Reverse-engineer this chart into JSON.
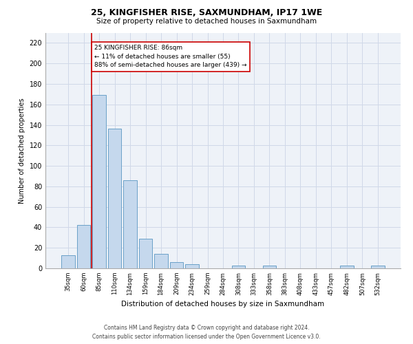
{
  "title1": "25, KINGFISHER RISE, SAXMUNDHAM, IP17 1WE",
  "title2": "Size of property relative to detached houses in Saxmundham",
  "xlabel": "Distribution of detached houses by size in Saxmundham",
  "ylabel": "Number of detached properties",
  "footer1": "Contains HM Land Registry data © Crown copyright and database right 2024.",
  "footer2": "Contains public sector information licensed under the Open Government Licence v3.0.",
  "annotation_line1": "25 KINGFISHER RISE: 86sqm",
  "annotation_line2": "← 11% of detached houses are smaller (55)",
  "annotation_line3": "88% of semi-detached houses are larger (439) →",
  "bar_labels": [
    "35sqm",
    "60sqm",
    "85sqm",
    "110sqm",
    "134sqm",
    "159sqm",
    "184sqm",
    "209sqm",
    "234sqm",
    "259sqm",
    "284sqm",
    "308sqm",
    "333sqm",
    "358sqm",
    "383sqm",
    "408sqm",
    "433sqm",
    "457sqm",
    "482sqm",
    "507sqm",
    "532sqm"
  ],
  "bar_values": [
    13,
    42,
    169,
    136,
    86,
    29,
    14,
    6,
    4,
    0,
    0,
    3,
    0,
    3,
    0,
    0,
    0,
    0,
    3,
    0,
    3
  ],
  "bar_color": "#c5d8ed",
  "bar_edge_color": "#6aa0c8",
  "vline_color": "#cc0000",
  "annotation_box_color": "#cc0000",
  "ylim": [
    0,
    230
  ],
  "yticks": [
    0,
    20,
    40,
    60,
    80,
    100,
    120,
    140,
    160,
    180,
    200,
    220
  ],
  "grid_color": "#d0d8e8",
  "bg_color": "#eef2f8",
  "title1_fontsize": 9,
  "title2_fontsize": 7.5,
  "xlabel_fontsize": 7.5,
  "ylabel_fontsize": 7,
  "xtick_fontsize": 6,
  "ytick_fontsize": 7,
  "annotation_fontsize": 6.5,
  "footer_fontsize": 5.5
}
